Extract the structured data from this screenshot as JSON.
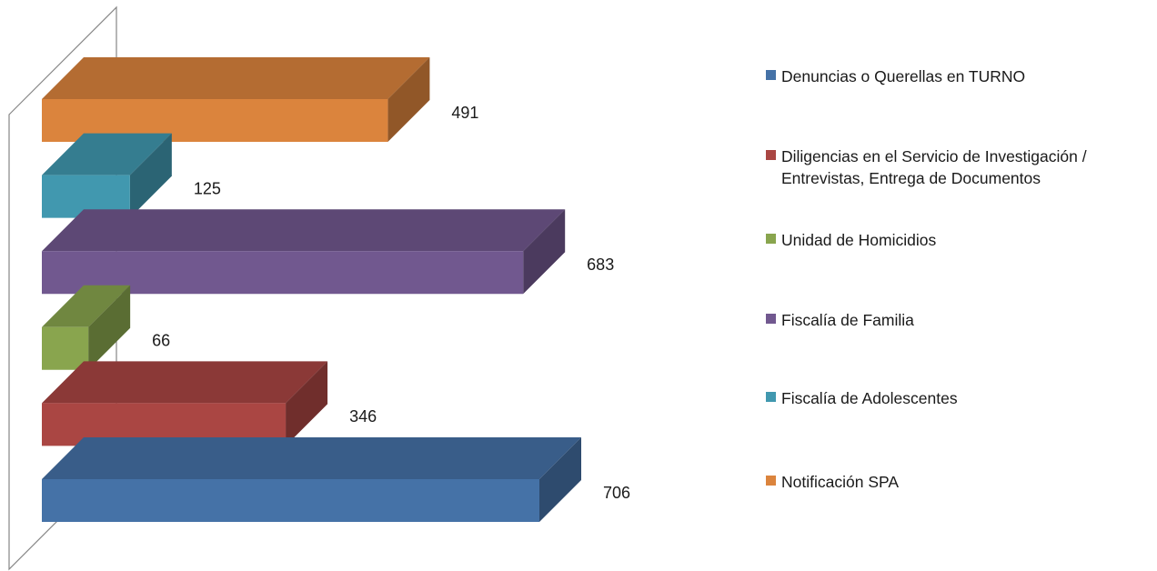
{
  "chart_data": {
    "type": "bar",
    "orientation": "horizontal",
    "style": "3d",
    "title": "",
    "xlabel": "",
    "ylabel": "",
    "legend_position": "right",
    "grid": false,
    "series": [
      {
        "name": "Denuncias o Querellas en TURNO",
        "value": 706,
        "color": "#4572A7"
      },
      {
        "name": "Diligencias en el Servicio de Investigación / Entrevistas, Entrega de Documentos",
        "value": 346,
        "color": "#AA4643"
      },
      {
        "name": "Unidad de Homicidios",
        "value": 66,
        "color": "#89A54E"
      },
      {
        "name": "Fiscalía de Familia",
        "value": 683,
        "color": "#71588F"
      },
      {
        "name": "Fiscalía de Adolescentes",
        "value": 125,
        "color": "#4198AF"
      },
      {
        "name": "Notificación SPA",
        "value": 491,
        "color": "#DB843D"
      }
    ]
  },
  "legend": {
    "items": [
      {
        "label": "Denuncias o Querellas en TURNO",
        "color": "#4572A7"
      },
      {
        "label": "Diligencias en el Servicio de Investigación /\nEntrevistas, Entrega de Documentos",
        "color": "#AA4643"
      },
      {
        "label": "Unidad de Homicidios",
        "color": "#89A54E"
      },
      {
        "label": "Fiscalía de Familia",
        "color": "#71588F"
      },
      {
        "label": "Fiscalía de Adolescentes",
        "color": "#4198AF"
      },
      {
        "label": "Notificación SPA",
        "color": "#DB843D"
      }
    ]
  }
}
